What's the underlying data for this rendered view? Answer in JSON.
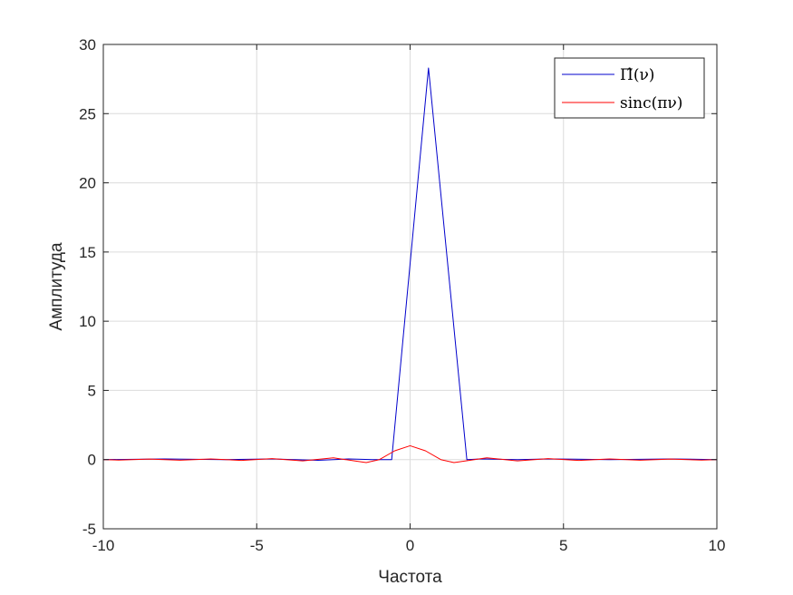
{
  "chart_data": {
    "type": "line",
    "xlabel": "Частота",
    "ylabel": "Амплитуда",
    "xlim": [
      -10,
      10
    ],
    "ylim": [
      -5,
      30
    ],
    "xticks": [
      -10,
      -5,
      0,
      5,
      10
    ],
    "yticks": [
      -5,
      0,
      5,
      10,
      15,
      20,
      25,
      30
    ],
    "xtick_labels": [
      "-10",
      "-5",
      "0",
      "5",
      "10"
    ],
    "ytick_labels": [
      "-5",
      "0",
      "5",
      "10",
      "15",
      "20",
      "25",
      "30"
    ],
    "grid": true,
    "legend_position": "top-right",
    "series": [
      {
        "name": "Π̂(ν)",
        "color": "#0000cc",
        "x": [
          -10,
          -8,
          -6,
          -4.5,
          -3,
          -2,
          -1.2,
          -0.6,
          0.6,
          1.85,
          2.3,
          3.5,
          4.5,
          6.5,
          8.5,
          10
        ],
        "y": [
          0,
          0.05,
          0,
          0.05,
          -0.05,
          0.05,
          0,
          0,
          28.3,
          0,
          0.05,
          0,
          0.05,
          0,
          0.05,
          0
        ]
      },
      {
        "name": "sinc(πν)",
        "color": "#ff0000",
        "x": [
          -10,
          -9.5,
          -8.5,
          -7.5,
          -6.5,
          -5.5,
          -4.5,
          -3.5,
          -2.5,
          -1.43,
          -1,
          -0.5,
          0,
          0.5,
          1,
          1.43,
          2.5,
          3.5,
          4.5,
          5.5,
          6.5,
          7.5,
          8.5,
          9.5,
          10
        ],
        "y": [
          0,
          -0.034,
          0.037,
          -0.042,
          0.049,
          -0.058,
          0.071,
          -0.091,
          0.127,
          -0.217,
          0,
          0.637,
          1,
          0.637,
          0,
          -0.217,
          0.127,
          -0.091,
          0.071,
          -0.058,
          0.049,
          -0.042,
          0.037,
          -0.034,
          0
        ]
      }
    ]
  }
}
